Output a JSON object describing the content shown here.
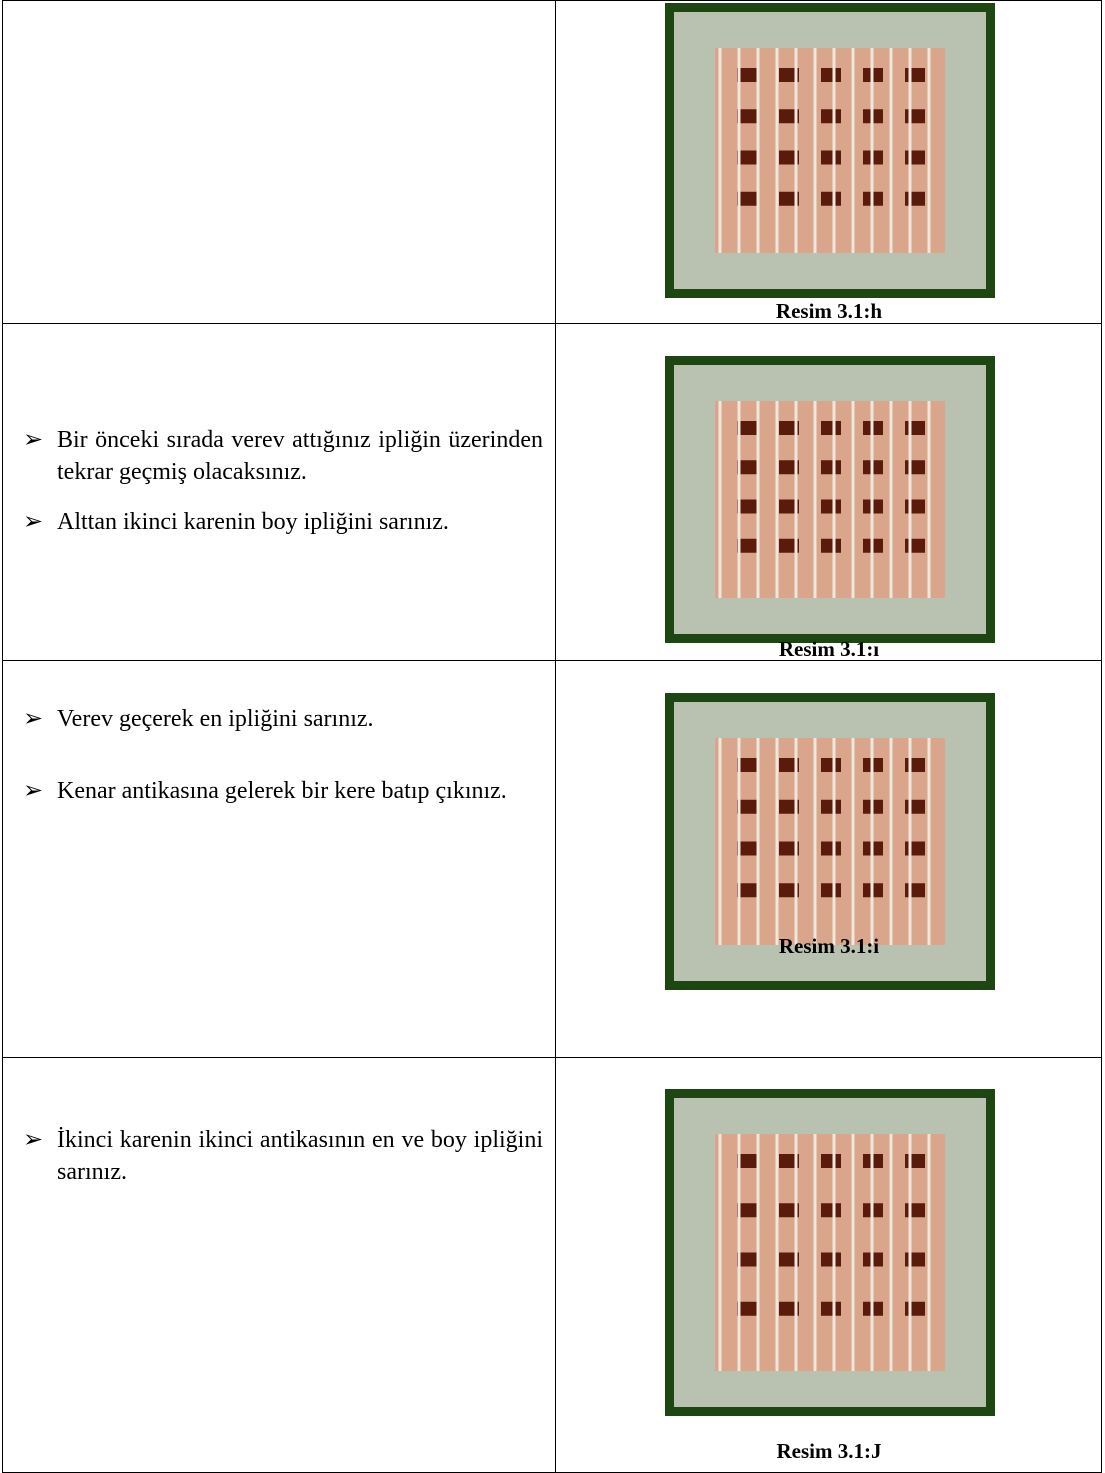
{
  "table": {
    "rows": [
      {
        "bullets": [],
        "caption": "Resim 3.1:h"
      },
      {
        "bullets": [
          "Bir önceki sırada verev attığınız ipliğin üzerinden tekrar geçmiş olacaksınız.",
          "Alttan ikinci karenin boy ipliğini sarınız."
        ],
        "caption": "Resim 3.1:ı"
      },
      {
        "bullets": [
          "Verev geçerek en ipliğini sarınız.",
          "Kenar antikasına gelerek bir kere batıp çıkınız."
        ],
        "caption": "Resim 3.1:i"
      },
      {
        "bullets": [
          "İkinci karenin ikinci antikasının en ve boy ipliğini sarınız."
        ],
        "caption": "Resim 3.1:J"
      }
    ]
  }
}
